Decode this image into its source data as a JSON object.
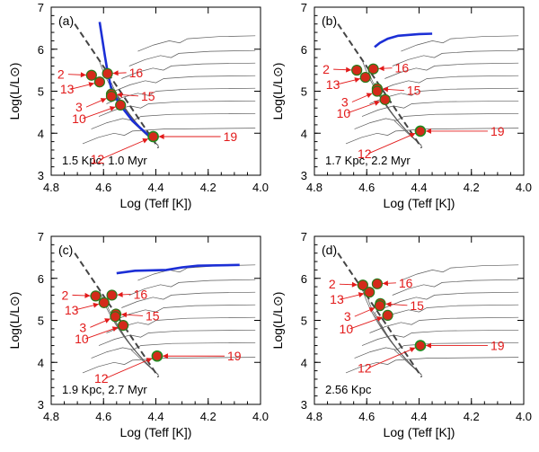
{
  "colors": {
    "axis": "#000000",
    "isochrone": "#5a5a5a",
    "zams": "#444444",
    "track": "#1c2fd6",
    "star_fill": "#d42a1a",
    "star_edge": "#2a7a1a",
    "open_edge": "#1f8a1f",
    "label": "#e21a1a"
  },
  "chart_data": [
    {
      "panel": "(a)",
      "type": "scatter",
      "annotation": "1.5 Kpc, 1.0 Myr",
      "xlabel": "Log (Teff [K])",
      "ylabel": "Log(L/L⊙)",
      "xlim": [
        4.8,
        4.0
      ],
      "ylim": [
        3,
        7
      ],
      "xticks": [
        "4.8",
        "4.6",
        "4.4",
        "4.2",
        "4.0"
      ],
      "yticks": [
        "3",
        "4",
        "5",
        "6",
        "7"
      ],
      "stars": [
        {
          "id": "2",
          "logT": 4.646,
          "logL": 5.38,
          "filled": true
        },
        {
          "id": "16",
          "logT": 4.585,
          "logL": 5.42,
          "filled": true
        },
        {
          "id": "13",
          "logT": 4.615,
          "logL": 5.22,
          "filled": true
        },
        {
          "id": "15",
          "logT": 4.57,
          "logL": 4.93,
          "filled": true
        },
        {
          "id": "3",
          "logT": 4.57,
          "logL": 4.88,
          "filled": true
        },
        {
          "id": "10",
          "logT": 4.535,
          "logL": 4.67,
          "filled": true
        },
        {
          "id": "12",
          "logT": 4.41,
          "logL": 3.92,
          "filled": true
        },
        {
          "id": "19",
          "logT": 4.41,
          "logL": 3.92,
          "filled": false
        }
      ],
      "blue_track": [
        [
          4.615,
          6.65
        ],
        [
          4.605,
          6.25
        ],
        [
          4.595,
          5.85
        ],
        [
          4.585,
          5.48
        ],
        [
          4.57,
          5.05
        ],
        [
          4.54,
          4.7
        ],
        [
          4.49,
          4.3
        ],
        [
          4.42,
          3.9
        ]
      ]
    },
    {
      "panel": "(b)",
      "type": "scatter",
      "annotation": "1.7 Kpc, 2.2 Myr",
      "xlabel": "Log (Teff [K])",
      "ylabel": "Log(L/L⊙)",
      "xlim": [
        4.8,
        4.0
      ],
      "ylim": [
        3,
        7
      ],
      "xticks": [
        "4.8",
        "4.6",
        "4.4",
        "4.2",
        "4.0"
      ],
      "yticks": [
        "3",
        "4",
        "5",
        "6",
        "7"
      ],
      "stars": [
        {
          "id": "2",
          "logT": 4.638,
          "logL": 5.5,
          "filled": true
        },
        {
          "id": "16",
          "logT": 4.575,
          "logL": 5.53,
          "filled": true
        },
        {
          "id": "13",
          "logT": 4.605,
          "logL": 5.33,
          "filled": true
        },
        {
          "id": "15",
          "logT": 4.56,
          "logL": 5.06,
          "filled": true
        },
        {
          "id": "3",
          "logT": 4.56,
          "logL": 5.0,
          "filled": true
        },
        {
          "id": "10",
          "logT": 4.53,
          "logL": 4.8,
          "filled": true
        },
        {
          "id": "12",
          "logT": 4.395,
          "logL": 4.05,
          "filled": true
        },
        {
          "id": "19",
          "logT": 4.395,
          "logL": 4.05,
          "filled": false
        }
      ],
      "blue_track": [
        [
          4.57,
          6.05
        ],
        [
          4.55,
          6.15
        ],
        [
          4.52,
          6.25
        ],
        [
          4.48,
          6.32
        ],
        [
          4.4,
          6.36
        ],
        [
          4.35,
          6.37
        ]
      ]
    },
    {
      "panel": "(c)",
      "type": "scatter",
      "annotation": "1.9 Kpc, 2.7 Myr",
      "xlabel": "Log (Teff [K])",
      "ylabel": "Log(L/L⊙)",
      "xlim": [
        4.8,
        4.0
      ],
      "ylim": [
        3,
        7
      ],
      "xticks": [
        "4.8",
        "4.6",
        "4.4",
        "4.2",
        "4.0"
      ],
      "yticks": [
        "3",
        "4",
        "5",
        "6",
        "7"
      ],
      "stars": [
        {
          "id": "2",
          "logT": 4.63,
          "logL": 5.58,
          "filled": true
        },
        {
          "id": "16",
          "logT": 4.568,
          "logL": 5.6,
          "filled": true
        },
        {
          "id": "13",
          "logT": 4.598,
          "logL": 5.42,
          "filled": true
        },
        {
          "id": "15",
          "logT": 4.553,
          "logL": 5.15,
          "filled": true
        },
        {
          "id": "3",
          "logT": 4.555,
          "logL": 5.09,
          "filled": true
        },
        {
          "id": "10",
          "logT": 4.525,
          "logL": 4.88,
          "filled": true
        },
        {
          "id": "12",
          "logT": 4.395,
          "logL": 4.15,
          "filled": true
        },
        {
          "id": "19",
          "logT": 4.395,
          "logL": 4.15,
          "filled": false
        }
      ],
      "blue_track": [
        [
          4.55,
          6.12
        ],
        [
          4.48,
          6.18
        ],
        [
          4.36,
          6.2
        ],
        [
          4.3,
          6.26
        ],
        [
          4.24,
          6.3
        ],
        [
          4.08,
          6.32
        ]
      ]
    },
    {
      "panel": "(d)",
      "type": "scatter",
      "annotation": "2.56 Kpc",
      "xlabel": "Log (Teff [K])",
      "ylabel": "Log(L/L⊙)",
      "xlim": [
        4.8,
        4.0
      ],
      "ylim": [
        3,
        7
      ],
      "xticks": [
        "4.8",
        "4.6",
        "4.4",
        "4.2",
        "4.0"
      ],
      "yticks": [
        "3",
        "4",
        "5",
        "6",
        "7"
      ],
      "stars": [
        {
          "id": "2",
          "logT": 4.615,
          "logL": 5.84,
          "filled": true
        },
        {
          "id": "16",
          "logT": 4.56,
          "logL": 5.87,
          "filled": true
        },
        {
          "id": "13",
          "logT": 4.59,
          "logL": 5.67,
          "filled": true
        },
        {
          "id": "15",
          "logT": 4.548,
          "logL": 5.4,
          "filled": true
        },
        {
          "id": "3",
          "logT": 4.55,
          "logL": 5.35,
          "filled": true
        },
        {
          "id": "10",
          "logT": 4.52,
          "logL": 5.12,
          "filled": true
        },
        {
          "id": "12",
          "logT": 4.395,
          "logL": 4.4,
          "filled": true
        },
        {
          "id": "19",
          "logT": 4.395,
          "logL": 4.4,
          "filled": false
        }
      ],
      "blue_track": []
    }
  ]
}
